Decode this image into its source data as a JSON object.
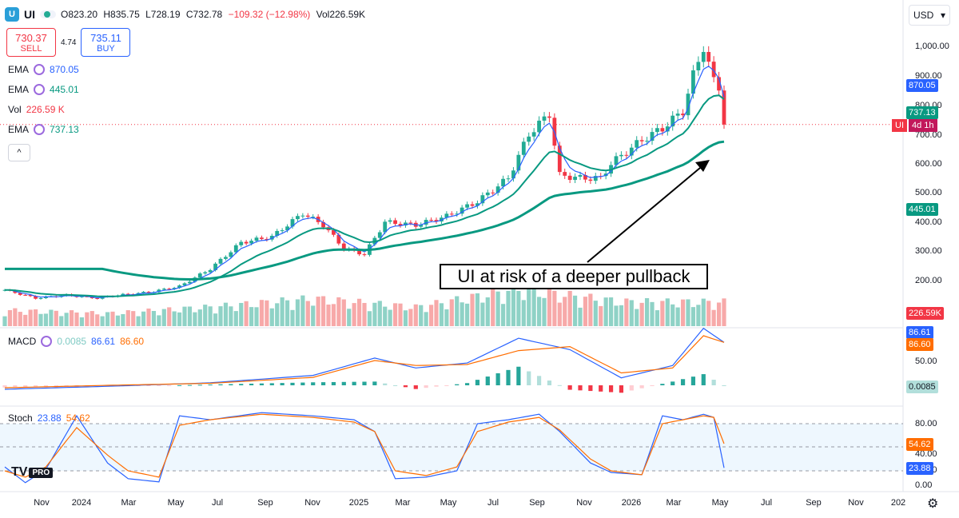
{
  "header": {
    "symbol": "UI",
    "logo": "U",
    "pill_glyph": "≈",
    "open": "O823.20",
    "high": "H835.75",
    "low": "L728.19",
    "close": "C732.78",
    "change": "−109.32 (−12.98%)",
    "volume": "Vol226.59K"
  },
  "trade": {
    "sell_price": "730.37",
    "sell_label": "SELL",
    "spread": "4.74",
    "buy_price": "735.11",
    "buy_label": "BUY"
  },
  "legend": {
    "ema1_label": "EMA",
    "ema1_value": "870.05",
    "ema2_label": "EMA",
    "ema2_value": "445.01",
    "vol_label": "Vol",
    "vol_value": "226.59 K",
    "ema3_label": "EMA",
    "ema3_value": "737.13",
    "macd_label": "MACD",
    "macd_hist": "0.0085",
    "macd_line": "86.61",
    "macd_signal": "86.60",
    "stoch_label": "Stoch",
    "stoch_k": "23.88",
    "stoch_d": "54.62"
  },
  "currency": "USD",
  "collapse_glyph": "^",
  "dropdown_glyph": "▾",
  "settings_glyph": "⚙",
  "tv_logo": "TV",
  "tv_badge": "PRO",
  "annotation": "UI at risk of a deeper pullback",
  "price_tags": {
    "ema_fast": "870.05",
    "ema_mid": "737.13",
    "ema_slow": "445.01",
    "volume": "226.59K",
    "macd_line": "86.61",
    "macd_signal": "86.60",
    "macd_hist": "0.0085",
    "stoch_d": "54.62",
    "stoch_k": "23.88",
    "countdown_symbol": "UI",
    "countdown": "4d 1h"
  },
  "colors": {
    "up": "#22ab94",
    "down": "#f23645",
    "ema_fast": "#2962ff",
    "ema_mid": "#089981",
    "ema_slow": "#089981",
    "macd": "#2962ff",
    "signal": "#ff6d00",
    "stoch_k": "#2962ff",
    "stoch_d": "#ff6d00"
  },
  "chart_data": {
    "type": "candlestick",
    "price_axis_ticks": [
      "1,000.00",
      "900.00",
      "800.00",
      "700.00",
      "600.00",
      "500.00",
      "400.00",
      "300.00",
      "200.00"
    ],
    "macd_axis_ticks": [
      "50.00"
    ],
    "stoch_axis_ticks": [
      "80.00",
      "40.00",
      "20.00",
      "0.00"
    ],
    "x_ticks": [
      "Nov",
      "2024",
      "Mar",
      "May",
      "Jul",
      "Sep",
      "Nov",
      "2025",
      "Mar",
      "May",
      "Jul",
      "Sep",
      "Nov",
      "2026",
      "Mar",
      "May",
      "Jul",
      "Sep",
      "Nov",
      "202"
    ],
    "price_ylim": [
      150,
      1060
    ],
    "price_anchors": [
      [
        0,
        168
      ],
      [
        6,
        140
      ],
      [
        12,
        150
      ],
      [
        18,
        140
      ],
      [
        22,
        150
      ],
      [
        28,
        160
      ],
      [
        34,
        180
      ],
      [
        40,
        240
      ],
      [
        46,
        330
      ],
      [
        52,
        350
      ],
      [
        58,
        430
      ],
      [
        62,
        390
      ],
      [
        66,
        310
      ],
      [
        70,
        290
      ],
      [
        74,
        400
      ],
      [
        80,
        390
      ],
      [
        86,
        420
      ],
      [
        92,
        470
      ],
      [
        98,
        550
      ],
      [
        102,
        700
      ],
      [
        106,
        770
      ],
      [
        108,
        560
      ],
      [
        112,
        550
      ],
      [
        116,
        550
      ],
      [
        118,
        600
      ],
      [
        124,
        680
      ],
      [
        128,
        720
      ],
      [
        132,
        780
      ],
      [
        134,
        900
      ],
      [
        136,
        1000
      ],
      [
        138,
        880
      ],
      [
        139,
        860
      ],
      [
        140,
        733
      ]
    ],
    "volume_ylim": [
      0,
      850000
    ],
    "volume_anchors": [
      [
        0,
        150000
      ],
      [
        20,
        120000
      ],
      [
        40,
        180000
      ],
      [
        60,
        260000
      ],
      [
        80,
        180000
      ],
      [
        100,
        350000
      ],
      [
        120,
        230000
      ],
      [
        140,
        226590
      ]
    ],
    "macd_ylim": [
      -10,
      130
    ],
    "macd_anchors": [
      [
        0,
        -8
      ],
      [
        20,
        -2
      ],
      [
        40,
        5
      ],
      [
        60,
        20
      ],
      [
        72,
        55
      ],
      [
        80,
        35
      ],
      [
        90,
        45
      ],
      [
        100,
        95
      ],
      [
        110,
        72
      ],
      [
        120,
        15
      ],
      [
        130,
        40
      ],
      [
        136,
        115
      ],
      [
        140,
        86.6
      ]
    ],
    "signal_anchors": [
      [
        0,
        -5
      ],
      [
        20,
        0
      ],
      [
        40,
        4
      ],
      [
        60,
        16
      ],
      [
        72,
        50
      ],
      [
        80,
        40
      ],
      [
        90,
        42
      ],
      [
        100,
        70
      ],
      [
        110,
        78
      ],
      [
        120,
        25
      ],
      [
        130,
        35
      ],
      [
        136,
        100
      ],
      [
        140,
        86.6
      ]
    ],
    "stoch_ylim": [
      0,
      100
    ],
    "stoch_k_anchors": [
      [
        0,
        25
      ],
      [
        4,
        5
      ],
      [
        8,
        22
      ],
      [
        14,
        90
      ],
      [
        20,
        30
      ],
      [
        24,
        10
      ],
      [
        30,
        6
      ],
      [
        34,
        90
      ],
      [
        40,
        85
      ],
      [
        50,
        94
      ],
      [
        60,
        90
      ],
      [
        68,
        85
      ],
      [
        72,
        70
      ],
      [
        76,
        10
      ],
      [
        82,
        12
      ],
      [
        88,
        20
      ],
      [
        92,
        80
      ],
      [
        98,
        85
      ],
      [
        104,
        92
      ],
      [
        108,
        70
      ],
      [
        114,
        30
      ],
      [
        118,
        18
      ],
      [
        124,
        15
      ],
      [
        128,
        90
      ],
      [
        132,
        85
      ],
      [
        136,
        92
      ],
      [
        138,
        88
      ],
      [
        140,
        23.88
      ]
    ],
    "stoch_d_anchors": [
      [
        0,
        20
      ],
      [
        4,
        12
      ],
      [
        8,
        25
      ],
      [
        14,
        75
      ],
      [
        20,
        40
      ],
      [
        24,
        20
      ],
      [
        30,
        12
      ],
      [
        34,
        78
      ],
      [
        40,
        85
      ],
      [
        50,
        92
      ],
      [
        60,
        88
      ],
      [
        68,
        82
      ],
      [
        72,
        70
      ],
      [
        76,
        20
      ],
      [
        82,
        14
      ],
      [
        88,
        25
      ],
      [
        92,
        70
      ],
      [
        98,
        82
      ],
      [
        104,
        88
      ],
      [
        108,
        72
      ],
      [
        114,
        35
      ],
      [
        118,
        20
      ],
      [
        124,
        15
      ],
      [
        128,
        80
      ],
      [
        132,
        85
      ],
      [
        136,
        90
      ],
      [
        138,
        88
      ],
      [
        140,
        54.62
      ]
    ]
  }
}
